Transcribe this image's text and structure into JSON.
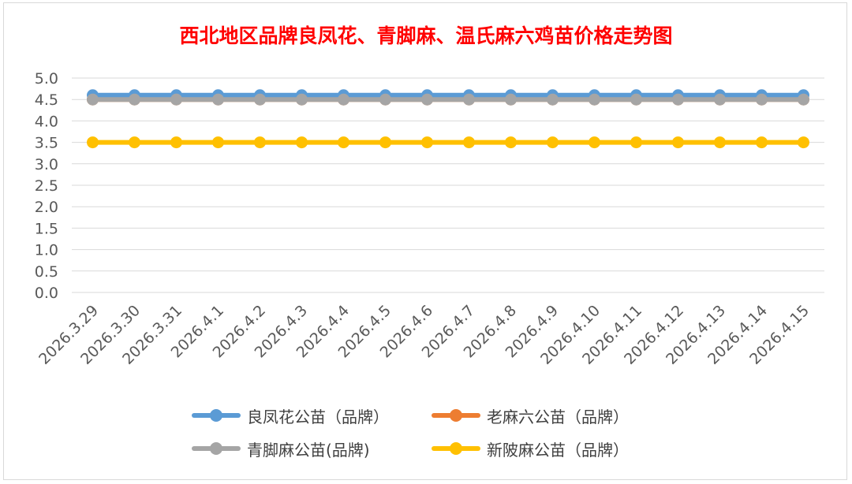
{
  "chart_data": {
    "type": "line",
    "title": "西北地区品牌良凤花、青脚麻、温氏麻六鸡苗价格走势图",
    "categories": [
      "2026.3.29",
      "2026.3.30",
      "2026.3.31",
      "2026.4.1",
      "2026.4.2",
      "2026.4.3",
      "2026.4.4",
      "2026.4.5",
      "2026.4.6",
      "2026.4.7",
      "2026.4.8",
      "2026.4.9",
      "2026.4.10",
      "2026.4.11",
      "2026.4.12",
      "2026.4.13",
      "2026.4.14",
      "2026.4.15"
    ],
    "yticks": [
      "0.0",
      "0.5",
      "1.0",
      "1.5",
      "2.0",
      "2.5",
      "3.0",
      "3.5",
      "4.0",
      "4.5",
      "5.0"
    ],
    "ylim": [
      0,
      5
    ],
    "grid": true,
    "legend_position": "bottom",
    "series": [
      {
        "name": "良凤花公苗（品牌）",
        "color": "#5b9bd5",
        "values": [
          4.6,
          4.6,
          4.6,
          4.6,
          4.6,
          4.6,
          4.6,
          4.6,
          4.6,
          4.6,
          4.6,
          4.6,
          4.6,
          4.6,
          4.6,
          4.6,
          4.6,
          4.6
        ]
      },
      {
        "name": "老麻六公苗（品牌）",
        "color": "#ed7d31",
        "values": [
          4.5,
          4.5,
          4.5,
          4.5,
          4.5,
          4.5,
          4.5,
          4.5,
          4.5,
          4.5,
          4.5,
          4.5,
          4.5,
          4.5,
          4.5,
          4.5,
          4.5,
          4.5
        ]
      },
      {
        "name": "青脚麻公苗(品牌)",
        "color": "#a5a5a5",
        "values": [
          4.5,
          4.5,
          4.5,
          4.5,
          4.5,
          4.5,
          4.5,
          4.5,
          4.5,
          4.5,
          4.5,
          4.5,
          4.5,
          4.5,
          4.5,
          4.5,
          4.5,
          4.5
        ]
      },
      {
        "name": "新陂麻公苗（品牌）",
        "color": "#ffc000",
        "values": [
          3.5,
          3.5,
          3.5,
          3.5,
          3.5,
          3.5,
          3.5,
          3.5,
          3.5,
          3.5,
          3.5,
          3.5,
          3.5,
          3.5,
          3.5,
          3.5,
          3.5,
          3.5
        ]
      }
    ]
  }
}
